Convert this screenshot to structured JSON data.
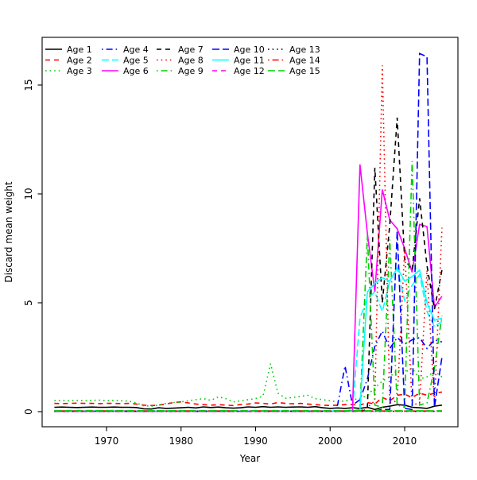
{
  "chart_data": {
    "type": "line",
    "title": "",
    "xlabel": "Year",
    "ylabel": "Discard mean weight",
    "x_ticks": [
      1970,
      1980,
      1990,
      2000,
      2010
    ],
    "x_tick_labels": [
      "1970",
      "1980",
      "1990",
      "2000",
      "2010"
    ],
    "y_ticks": [
      0,
      5,
      10,
      15
    ],
    "y_tick_labels": [
      "0",
      "5",
      "10",
      "15"
    ],
    "xlim": [
      1961.4,
      2017.1
    ],
    "ylim": [
      -0.7,
      17.2
    ],
    "grid": false,
    "legend_position": "top-left",
    "legend_columns": 5,
    "x": [
      1963,
      1964,
      1965,
      1966,
      1967,
      1968,
      1969,
      1970,
      1971,
      1972,
      1973,
      1974,
      1975,
      1976,
      1977,
      1978,
      1979,
      1980,
      1981,
      1982,
      1983,
      1984,
      1985,
      1986,
      1987,
      1988,
      1989,
      1990,
      1991,
      1992,
      1993,
      1994,
      1995,
      1996,
      1997,
      1998,
      1999,
      2000,
      2001,
      2002,
      2003,
      2004,
      2005,
      2006,
      2007,
      2008,
      2009,
      2010,
      2011,
      2012,
      2013,
      2014,
      2015
    ],
    "series": [
      {
        "name": "Age 1",
        "color": "#000000",
        "linestyle": "solid",
        "values": [
          0.2,
          0.21,
          0.2,
          0.19,
          0.2,
          0.21,
          0.2,
          0.2,
          0.21,
          0.2,
          0.2,
          0.19,
          0.13,
          0.12,
          0.18,
          0.15,
          0.16,
          0.18,
          0.2,
          0.17,
          0.22,
          0.19,
          0.21,
          0.18,
          0.16,
          0.18,
          0.22,
          0.2,
          0.23,
          0.2,
          0.22,
          0.2,
          0.21,
          0.22,
          0.2,
          0.23,
          0.18,
          0.15,
          0.17,
          0.15,
          0.18,
          0.15,
          0.2,
          0.1,
          0.2,
          0.25,
          0.32,
          0.3,
          0.2,
          0.18,
          0.15,
          0.25,
          0.3
        ]
      },
      {
        "name": "Age 2",
        "color": "#FF0000",
        "linestyle": "dashed",
        "values": [
          0.38,
          0.37,
          0.38,
          0.39,
          0.38,
          0.38,
          0.37,
          0.38,
          0.38,
          0.37,
          0.38,
          0.35,
          0.3,
          0.28,
          0.3,
          0.35,
          0.42,
          0.45,
          0.4,
          0.35,
          0.32,
          0.3,
          0.32,
          0.3,
          0.28,
          0.33,
          0.35,
          0.4,
          0.38,
          0.35,
          0.42,
          0.38,
          0.36,
          0.38,
          0.35,
          0.32,
          0.3,
          0.28,
          0.3,
          0.32,
          0.33,
          0.3,
          0.42,
          0.35,
          0.65,
          0.5,
          0.75,
          0.8,
          0.65,
          0.85,
          0.75,
          0.85,
          0.9
        ]
      },
      {
        "name": "Age 3",
        "color": "#00CD00",
        "linestyle": "dotted",
        "values": [
          0.5,
          0.52,
          0.5,
          0.51,
          0.5,
          0.52,
          0.53,
          0.5,
          0.52,
          0.5,
          0.48,
          0.4,
          0.27,
          0.25,
          0.3,
          0.38,
          0.42,
          0.45,
          0.5,
          0.55,
          0.6,
          0.52,
          0.68,
          0.6,
          0.45,
          0.5,
          0.55,
          0.6,
          0.72,
          2.2,
          0.85,
          0.62,
          0.65,
          0.7,
          0.75,
          0.6,
          0.55,
          0.5,
          0.45,
          0.5,
          0.55,
          0.6,
          0.75,
          1.1,
          1.4,
          1.6,
          1.9,
          1.8,
          2.0,
          1.5,
          1.6,
          1.85,
          1.6
        ]
      },
      {
        "name": "Age 4",
        "color": "#0000FF",
        "linestyle": "dotdash",
        "values": [
          0.02,
          0.02,
          0.02,
          0.02,
          0.02,
          0.02,
          0.02,
          0.02,
          0.02,
          0.02,
          0.02,
          0.02,
          0.02,
          0.02,
          0.02,
          0.02,
          0.02,
          0.02,
          0.02,
          0.02,
          0.02,
          0.02,
          0.02,
          0.02,
          0.02,
          0.02,
          0.02,
          0.02,
          0.02,
          0.02,
          0.02,
          0.02,
          0.02,
          0.02,
          0.02,
          0.02,
          0.02,
          0.02,
          0.3,
          2.1,
          0.3,
          0.55,
          1.5,
          3.0,
          3.7,
          2.9,
          3.4,
          3.1,
          3.3,
          3.4,
          2.9,
          3.3,
          3.2
        ]
      },
      {
        "name": "Age 5",
        "color": "#00FFFF",
        "linestyle": "longdash",
        "values": [
          0.02,
          0.02,
          0.02,
          0.02,
          0.02,
          0.02,
          0.02,
          0.02,
          0.02,
          0.02,
          0.02,
          0.02,
          0.02,
          0.02,
          0.02,
          0.02,
          0.02,
          0.02,
          0.02,
          0.02,
          0.02,
          0.02,
          0.02,
          0.02,
          0.02,
          0.02,
          0.02,
          0.02,
          0.02,
          0.02,
          0.02,
          0.02,
          0.02,
          0.02,
          0.02,
          0.02,
          0.02,
          0.02,
          0.02,
          0.02,
          0.1,
          4.3,
          5.2,
          5.5,
          4.6,
          6.0,
          6.6,
          5.1,
          5.8,
          6.3,
          4.6,
          3.9,
          4.15
        ]
      },
      {
        "name": "Age 6",
        "color": "#FF00FF",
        "linestyle": "solid",
        "values": [
          0.02,
          0.02,
          0.02,
          0.02,
          0.02,
          0.02,
          0.02,
          0.02,
          0.02,
          0.02,
          0.02,
          0.02,
          0.02,
          0.02,
          0.02,
          0.02,
          0.02,
          0.02,
          0.02,
          0.02,
          0.02,
          0.02,
          0.02,
          0.02,
          0.02,
          0.02,
          0.02,
          0.02,
          0.02,
          0.02,
          0.02,
          0.02,
          0.02,
          0.02,
          0.02,
          0.02,
          0.02,
          0.02,
          0.02,
          0.02,
          0.05,
          11.35,
          8.2,
          5.5,
          10.2,
          8.8,
          8.4,
          7.5,
          6.4,
          8.6,
          8.5,
          4.8,
          5.3
        ]
      },
      {
        "name": "Age 7",
        "color": "#000000",
        "linestyle": "dashed",
        "values": [
          0.02,
          0.02,
          0.02,
          0.02,
          0.02,
          0.02,
          0.02,
          0.02,
          0.02,
          0.02,
          0.02,
          0.02,
          0.02,
          0.02,
          0.02,
          0.02,
          0.02,
          0.02,
          0.02,
          0.02,
          0.02,
          0.02,
          0.02,
          0.02,
          0.02,
          0.02,
          0.02,
          0.02,
          0.02,
          0.02,
          0.02,
          0.02,
          0.02,
          0.02,
          0.02,
          0.02,
          0.02,
          0.02,
          0.02,
          0.02,
          0.02,
          0.02,
          0.1,
          11.2,
          5.0,
          8.6,
          13.5,
          7.0,
          6.5,
          9.8,
          6.7,
          4.7,
          6.5
        ]
      },
      {
        "name": "Age 8",
        "color": "#FF0000",
        "linestyle": "dotted",
        "values": [
          0.03,
          0.03,
          0.03,
          0.03,
          0.03,
          0.03,
          0.03,
          0.03,
          0.03,
          0.03,
          0.03,
          0.03,
          0.03,
          0.03,
          0.03,
          0.03,
          0.03,
          0.03,
          0.03,
          0.03,
          0.03,
          0.03,
          0.03,
          0.03,
          0.03,
          0.03,
          0.03,
          0.03,
          0.03,
          0.03,
          0.03,
          0.03,
          0.03,
          0.03,
          0.03,
          0.03,
          0.03,
          0.03,
          0.03,
          0.03,
          0.03,
          0.03,
          0.2,
          0.5,
          15.9,
          0.4,
          0.5,
          7.5,
          0.3,
          0.4,
          6.5,
          0.3,
          8.45
        ]
      },
      {
        "name": "Age 9",
        "color": "#00CD00",
        "linestyle": "dotdash",
        "values": [
          0.03,
          0.03,
          0.03,
          0.03,
          0.03,
          0.03,
          0.03,
          0.03,
          0.03,
          0.03,
          0.03,
          0.03,
          0.03,
          0.03,
          0.03,
          0.03,
          0.03,
          0.03,
          0.03,
          0.03,
          0.03,
          0.03,
          0.03,
          0.03,
          0.03,
          0.03,
          0.03,
          0.03,
          0.03,
          0.03,
          0.03,
          0.03,
          0.03,
          0.03,
          0.03,
          0.03,
          0.03,
          0.03,
          0.03,
          0.03,
          0.03,
          0.1,
          8.1,
          0.3,
          0.2,
          7.9,
          0.3,
          0.2,
          11.5,
          0.3,
          0.4,
          2.0,
          4.4
        ]
      },
      {
        "name": "Age 10",
        "color": "#0000FF",
        "linestyle": "longdash",
        "values": [
          0.03,
          0.03,
          0.03,
          0.03,
          0.03,
          0.03,
          0.03,
          0.03,
          0.03,
          0.03,
          0.03,
          0.03,
          0.03,
          0.03,
          0.03,
          0.03,
          0.03,
          0.03,
          0.03,
          0.03,
          0.03,
          0.03,
          0.03,
          0.03,
          0.03,
          0.03,
          0.03,
          0.03,
          0.03,
          0.03,
          0.03,
          0.03,
          0.03,
          0.03,
          0.03,
          0.03,
          0.03,
          0.03,
          0.03,
          0.03,
          0.03,
          0.03,
          0.03,
          0.03,
          0.1,
          0.1,
          8.3,
          0.15,
          0.1,
          16.45,
          16.3,
          0.2,
          2.5
        ]
      },
      {
        "name": "Age 11",
        "color": "#00FFFF",
        "linestyle": "solid",
        "values": [
          0.03,
          0.03,
          0.03,
          0.03,
          0.03,
          0.03,
          0.03,
          0.03,
          0.03,
          0.03,
          0.03,
          0.03,
          0.03,
          0.03,
          0.03,
          0.03,
          0.03,
          0.03,
          0.03,
          0.03,
          0.03,
          0.03,
          0.03,
          0.03,
          0.03,
          0.03,
          0.03,
          0.03,
          0.03,
          0.03,
          0.03,
          0.03,
          0.03,
          0.03,
          0.03,
          0.03,
          0.03,
          0.03,
          0.03,
          0.03,
          0.03,
          0.1,
          5.5,
          5.9,
          6.15,
          6.0,
          6.6,
          6.0,
          6.2,
          6.5,
          5.0,
          4.2,
          4.3
        ]
      },
      {
        "name": "Age 12",
        "color": "#FF00FF",
        "linestyle": "dashed",
        "values": [
          0.02,
          0.02,
          0.02,
          0.02,
          0.02,
          0.02,
          0.02,
          0.02,
          0.02,
          0.02,
          0.02,
          0.02,
          0.02,
          0.02,
          0.02,
          0.02,
          0.02,
          0.02,
          0.02,
          0.02,
          0.02,
          0.02,
          0.02,
          0.02,
          0.02,
          0.02,
          0.02,
          0.02,
          0.02,
          0.02,
          0.02,
          0.02,
          0.02,
          0.02,
          0.02,
          0.02,
          0.02,
          0.02,
          0.02,
          0.02,
          0.02,
          0.02,
          0.02,
          0.02,
          0.02,
          0.02,
          0.02,
          0.02,
          0.02,
          0.02,
          0.02,
          0.02,
          0.02
        ]
      },
      {
        "name": "Age 13",
        "color": "#000000",
        "linestyle": "dotted",
        "values": [
          0.02,
          0.02,
          0.02,
          0.02,
          0.02,
          0.02,
          0.02,
          0.02,
          0.02,
          0.02,
          0.02,
          0.02,
          0.02,
          0.02,
          0.02,
          0.02,
          0.02,
          0.02,
          0.02,
          0.02,
          0.02,
          0.02,
          0.02,
          0.02,
          0.02,
          0.02,
          0.02,
          0.02,
          0.02,
          0.02,
          0.02,
          0.02,
          0.02,
          0.02,
          0.02,
          0.02,
          0.02,
          0.02,
          0.02,
          0.02,
          0.02,
          0.02,
          0.02,
          0.02,
          0.02,
          0.02,
          0.02,
          0.02,
          0.02,
          0.02,
          0.02,
          0.02,
          0.02
        ]
      },
      {
        "name": "Age 14",
        "color": "#FF0000",
        "linestyle": "dotdash",
        "values": [
          0.03,
          0.03,
          0.03,
          0.03,
          0.03,
          0.03,
          0.03,
          0.03,
          0.03,
          0.03,
          0.03,
          0.03,
          0.03,
          0.03,
          0.03,
          0.03,
          0.03,
          0.03,
          0.03,
          0.03,
          0.03,
          0.03,
          0.03,
          0.03,
          0.03,
          0.03,
          0.03,
          0.03,
          0.03,
          0.03,
          0.03,
          0.03,
          0.03,
          0.03,
          0.03,
          0.03,
          0.03,
          0.03,
          0.03,
          0.03,
          0.03,
          0.03,
          0.03,
          0.03,
          0.03,
          0.03,
          0.03,
          0.03,
          0.03,
          0.03,
          0.03,
          0.03,
          0.03
        ]
      },
      {
        "name": "Age 15",
        "color": "#00CD00",
        "linestyle": "longdash",
        "values": [
          0.04,
          0.04,
          0.04,
          0.04,
          0.04,
          0.04,
          0.04,
          0.04,
          0.04,
          0.04,
          0.04,
          0.04,
          0.04,
          0.04,
          0.04,
          0.04,
          0.04,
          0.04,
          0.04,
          0.04,
          0.04,
          0.04,
          0.04,
          0.04,
          0.04,
          0.04,
          0.04,
          0.04,
          0.04,
          0.04,
          0.04,
          0.04,
          0.04,
          0.04,
          0.04,
          0.04,
          0.04,
          0.04,
          0.04,
          0.04,
          0.04,
          0.04,
          0.04,
          0.04,
          0.04,
          0.04,
          0.04,
          0.04,
          0.04,
          0.04,
          0.04,
          0.04,
          0.04
        ]
      }
    ]
  }
}
